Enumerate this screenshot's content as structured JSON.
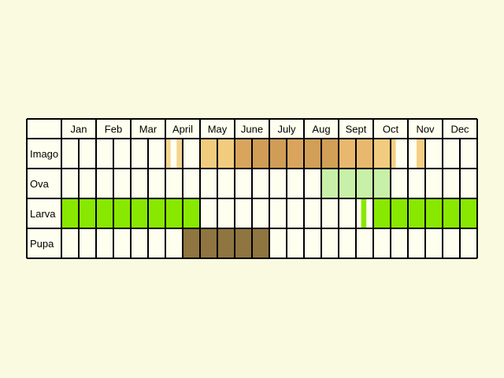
{
  "chart_data": {
    "type": "table",
    "title": "",
    "months": [
      "Jan",
      "Feb",
      "Mar",
      "April",
      "May",
      "June",
      "July",
      "Aug",
      "Sept",
      "Oct",
      "Nov",
      "Dec"
    ],
    "columns_per_month": 2,
    "stages": [
      {
        "name": "Imago",
        "segments": [
          {
            "start": 6.0,
            "end": 6.3,
            "color": "#f4cf84",
            "opacity": 0.9
          },
          {
            "start": 6.65,
            "end": 6.95,
            "color": "#f4cf84",
            "opacity": 0.9
          },
          {
            "start": 8.0,
            "end": 10.0,
            "color": "#f1cc7e",
            "opacity": 1
          },
          {
            "start": 10.0,
            "end": 11.0,
            "color": "#d9a55c",
            "opacity": 1
          },
          {
            "start": 11.0,
            "end": 12.0,
            "color": "#cf9d56",
            "opacity": 1
          },
          {
            "start": 12.0,
            "end": 13.0,
            "color": "#cf9d56",
            "opacity": 1
          },
          {
            "start": 13.0,
            "end": 14.0,
            "color": "#d9a55c",
            "opacity": 1
          },
          {
            "start": 14.0,
            "end": 16.0,
            "color": "#d19f56",
            "opacity": 1
          },
          {
            "start": 16.0,
            "end": 17.0,
            "color": "#e8b86e",
            "opacity": 1
          },
          {
            "start": 17.0,
            "end": 18.0,
            "color": "#e8b86e",
            "opacity": 1
          },
          {
            "start": 18.0,
            "end": 19.0,
            "color": "#f1cc7e",
            "opacity": 1
          },
          {
            "start": 19.0,
            "end": 19.3,
            "color": "#f4cf84",
            "opacity": 1
          },
          {
            "start": 20.5,
            "end": 21.0,
            "color": "#f4cf84",
            "opacity": 1
          }
        ]
      },
      {
        "name": "Ova",
        "segments": [
          {
            "start": 15.0,
            "end": 19.0,
            "color": "#c8f0a8",
            "opacity": 1
          }
        ]
      },
      {
        "name": "Larva",
        "segments": [
          {
            "start": 0.0,
            "end": 8.0,
            "color": "#88e800",
            "opacity": 1
          },
          {
            "start": 17.3,
            "end": 17.6,
            "color": "#88e800",
            "opacity": 1
          },
          {
            "start": 18.0,
            "end": 24.0,
            "color": "#88e800",
            "opacity": 1
          }
        ]
      },
      {
        "name": "Pupa",
        "segments": [
          {
            "start": 7.0,
            "end": 12.0,
            "color": "#8f7540",
            "opacity": 1
          }
        ]
      }
    ]
  }
}
